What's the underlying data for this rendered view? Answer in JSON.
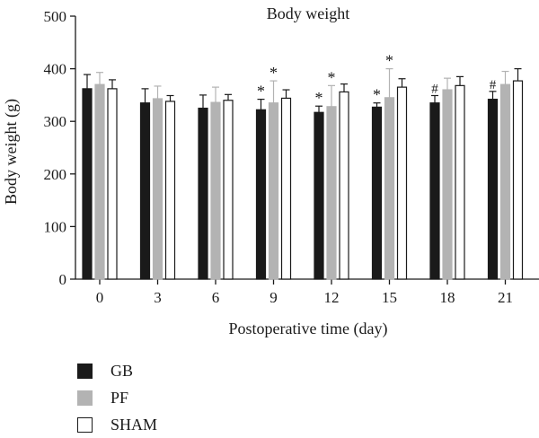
{
  "chart_data": {
    "type": "bar",
    "title": "Body weight",
    "xlabel": "Postoperative time (day)",
    "ylabel": "Body weight (g)",
    "ylim": [
      0,
      500
    ],
    "yticks": [
      "0",
      "100",
      "200",
      "300",
      "400",
      "500"
    ],
    "categories": [
      "0",
      "3",
      "6",
      "9",
      "12",
      "15",
      "18",
      "21"
    ],
    "series": [
      {
        "name": "GB",
        "color": "#1a1a1a",
        "values": [
          362,
          335,
          325,
          322,
          317,
          327,
          335,
          342
        ],
        "errors": [
          27,
          27,
          25,
          20,
          12,
          8,
          14,
          15
        ],
        "markers": [
          "",
          "",
          "",
          "*",
          "*",
          "*",
          "#",
          "#"
        ]
      },
      {
        "name": "PF",
        "color": "#b3b3b3",
        "values": [
          370,
          343,
          336,
          335,
          328,
          345,
          360,
          370
        ],
        "errors": [
          23,
          24,
          29,
          42,
          40,
          55,
          22,
          25
        ],
        "markers": [
          "",
          "",
          "",
          "*",
          "*",
          "*",
          "",
          ""
        ]
      },
      {
        "name": "SHAM",
        "color": "#ffffff",
        "values": [
          362,
          338,
          340,
          344,
          356,
          365,
          368,
          377
        ],
        "errors": [
          17,
          11,
          11,
          16,
          15,
          16,
          17,
          23
        ],
        "markers": [
          "",
          "",
          "",
          "",
          "",
          "",
          "",
          ""
        ]
      }
    ],
    "legend_position": "bottom-left"
  }
}
